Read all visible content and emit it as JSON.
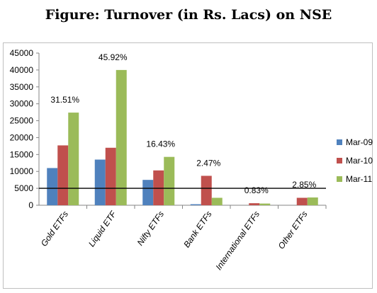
{
  "chart_data": {
    "type": "bar",
    "title": "Figure: Turnover (in Rs. Lacs) on NSE",
    "categories": [
      "Gold ETFs",
      "Liquid ETF",
      "Nifty ETFs",
      "Bank ETFs",
      "International ETFs",
      "Other ETFs"
    ],
    "series": [
      {
        "name": "Mar-09",
        "color": "#4f81bd",
        "values": [
          11000,
          13500,
          7500,
          300,
          0,
          0
        ]
      },
      {
        "name": "Mar-10",
        "color": "#c0504d",
        "values": [
          17700,
          17000,
          10300,
          8700,
          600,
          2200
        ]
      },
      {
        "name": "Mar-11",
        "color": "#9bbb59",
        "values": [
          27400,
          40000,
          14300,
          2200,
          500,
          2300
        ]
      }
    ],
    "annotations": [
      "31.51%",
      "45.92%",
      "16.43%",
      "2.47%",
      "0.83%",
      "2.85%"
    ],
    "ylim": [
      0,
      45000
    ],
    "yticks": [
      0,
      5000,
      10000,
      15000,
      20000,
      25000,
      30000,
      35000,
      40000,
      45000
    ],
    "reference_line": 5000,
    "legend_position": "right",
    "grid": false
  }
}
